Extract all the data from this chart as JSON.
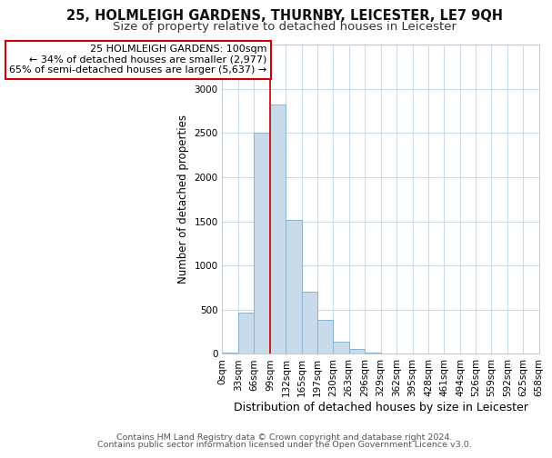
{
  "title": "25, HOLMLEIGH GARDENS, THURNBY, LEICESTER, LE7 9QH",
  "subtitle": "Size of property relative to detached houses in Leicester",
  "xlabel": "Distribution of detached houses by size in Leicester",
  "ylabel": "Number of detached properties",
  "bin_edges": [
    0,
    33,
    66,
    99,
    132,
    165,
    197,
    230,
    263,
    296,
    329,
    362,
    395,
    428,
    461,
    494,
    526,
    559,
    592,
    625,
    658
  ],
  "bin_labels": [
    "0sqm",
    "33sqm",
    "66sqm",
    "99sqm",
    "132sqm",
    "165sqm",
    "197sqm",
    "230sqm",
    "263sqm",
    "296sqm",
    "329sqm",
    "362sqm",
    "395sqm",
    "428sqm",
    "461sqm",
    "494sqm",
    "526sqm",
    "559sqm",
    "592sqm",
    "625sqm",
    "658sqm"
  ],
  "bar_heights": [
    20,
    470,
    2500,
    2820,
    1520,
    700,
    390,
    140,
    55,
    20,
    5,
    0,
    0,
    0,
    0,
    0,
    0,
    0,
    0,
    0
  ],
  "bar_color": "#c9daea",
  "bar_edge_color": "#8ab4cf",
  "property_line_x": 100,
  "ylim": [
    0,
    3500
  ],
  "annotation_line1": "25 HOLMLEIGH GARDENS: 100sqm",
  "annotation_line2": "← 34% of detached houses are smaller (2,977)",
  "annotation_line3": "65% of semi-detached houses are larger (5,637) →",
  "annotation_box_color": "white",
  "annotation_box_edge_color": "#cc0000",
  "red_line_color": "#cc0000",
  "footer_line1": "Contains HM Land Registry data © Crown copyright and database right 2024.",
  "footer_line2": "Contains public sector information licensed under the Open Government Licence v3.0.",
  "background_color": "white",
  "plot_background": "white",
  "grid_color": "#c8d8e8",
  "title_fontsize": 10.5,
  "subtitle_fontsize": 9.5,
  "xlabel_fontsize": 9,
  "ylabel_fontsize": 8.5,
  "tick_fontsize": 7.5,
  "annotation_fontsize": 8,
  "footer_fontsize": 6.8
}
